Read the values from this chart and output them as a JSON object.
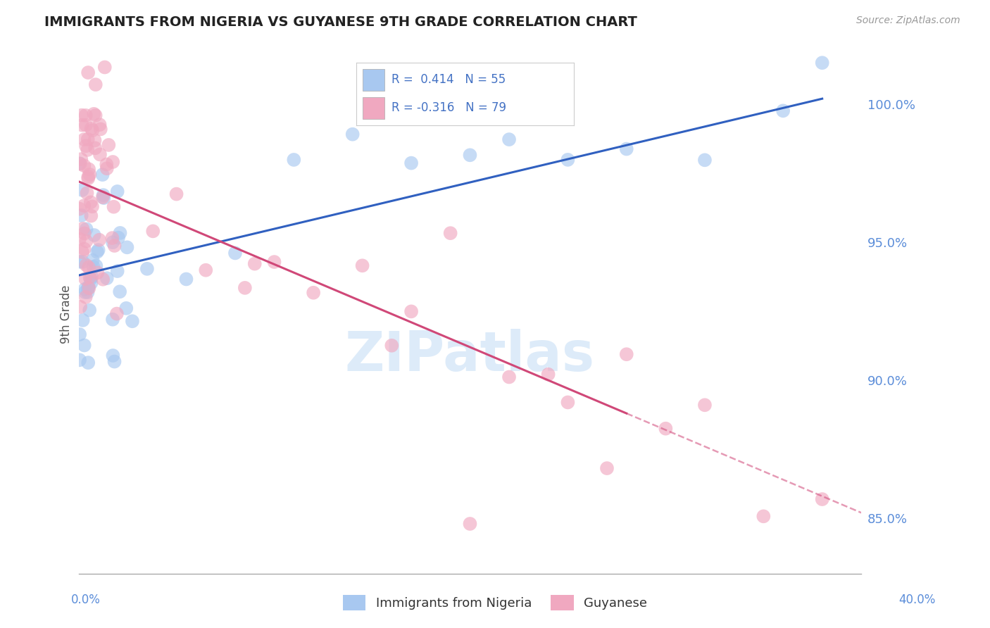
{
  "title": "IMMIGRANTS FROM NIGERIA VS GUYANESE 9TH GRADE CORRELATION CHART",
  "source_text": "Source: ZipAtlas.com",
  "ylabel": "9th Grade",
  "xmin": 0.0,
  "xmax": 40.0,
  "ymin": 83.0,
  "ymax": 101.8,
  "yticks": [
    85.0,
    90.0,
    95.0,
    100.0
  ],
  "ytick_labels": [
    "85.0%",
    "90.0%",
    "95.0%",
    "100.0%"
  ],
  "r_nigeria": 0.414,
  "n_nigeria": 55,
  "r_guyanese": -0.316,
  "n_guyanese": 79,
  "color_nigeria": "#A8C8F0",
  "color_guyanese": "#F0A8C0",
  "trendline_nigeria": "#3060C0",
  "trendline_guyanese": "#D04878",
  "background_color": "#FFFFFF",
  "legend_r1_text": "R =  0.414   N = 55",
  "legend_r2_text": "R = -0.316   N = 79",
  "watermark_text": "ZIPatlas",
  "nigeria_trendline_x0": 0.0,
  "nigeria_trendline_y0": 93.8,
  "nigeria_trendline_x1": 38.0,
  "nigeria_trendline_y1": 100.2,
  "guyanese_trendline_x0": 0.0,
  "guyanese_trendline_y0": 97.2,
  "guyanese_trendline_x1": 28.0,
  "guyanese_trendline_y1": 88.8,
  "guyanese_trendline_dash_x0": 28.0,
  "guyanese_trendline_dash_y0": 88.8,
  "guyanese_trendline_dash_x1": 40.0,
  "guyanese_trendline_dash_y1": 85.2
}
